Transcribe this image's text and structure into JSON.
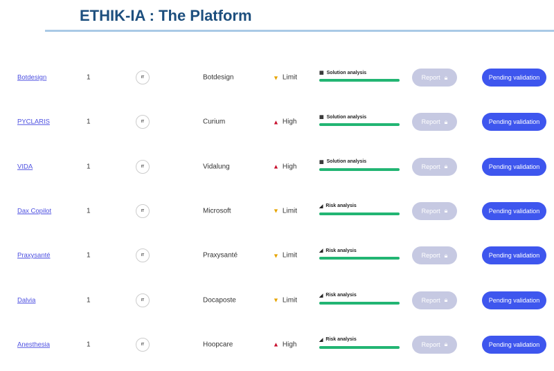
{
  "title": "ETHIK-IA : The Platform",
  "colors": {
    "high": "#c8102e",
    "limit": "#e6a400",
    "progress": "#22b573",
    "pending": "#3e56ee",
    "report_disabled": "#c6c9e2"
  },
  "report_label": "Report",
  "report_icon": "lock-icon",
  "pending_label": "Pending validation",
  "rows": [
    {
      "name": "Botdesign",
      "count": "1",
      "badge": "IT",
      "company": "Botdesign",
      "risk": "Limit",
      "risk_icon": "triangle-down",
      "stage": "Solution analysis",
      "stage_icon": "grid-icon",
      "progress": 100
    },
    {
      "name": "PYCLARIS",
      "count": "1",
      "badge": "IT",
      "company": "Curium",
      "risk": "High",
      "risk_icon": "triangle-up",
      "stage": "Solution analysis",
      "stage_icon": "grid-icon",
      "progress": 100
    },
    {
      "name": "VIDA",
      "count": "1",
      "badge": "IT",
      "company": "Vidalung",
      "risk": "High",
      "risk_icon": "triangle-up",
      "stage": "Solution analysis",
      "stage_icon": "grid-icon",
      "progress": 100
    },
    {
      "name": "Dax Copilot",
      "count": "1",
      "badge": "IT",
      "company": "Microsoft",
      "risk": "Limit",
      "risk_icon": "triangle-down",
      "stage": "Risk analysis",
      "stage_icon": "chart-icon",
      "progress": 100
    },
    {
      "name": "Praxysanté",
      "count": "1",
      "badge": "IT",
      "company": "Praxysanté",
      "risk": "Limit",
      "risk_icon": "triangle-down",
      "stage": "Risk analysis",
      "stage_icon": "chart-icon",
      "progress": 100
    },
    {
      "name": "Dalvia",
      "count": "1",
      "badge": "IT",
      "company": "Docaposte",
      "risk": "Limit",
      "risk_icon": "triangle-down",
      "stage": "Risk analysis",
      "stage_icon": "chart-icon",
      "progress": 100
    },
    {
      "name": "Anesthesia",
      "count": "1",
      "badge": "IT",
      "company": "Hoopcare",
      "risk": "High",
      "risk_icon": "triangle-up",
      "stage": "Risk analysis",
      "stage_icon": "chart-icon",
      "progress": 100
    }
  ]
}
